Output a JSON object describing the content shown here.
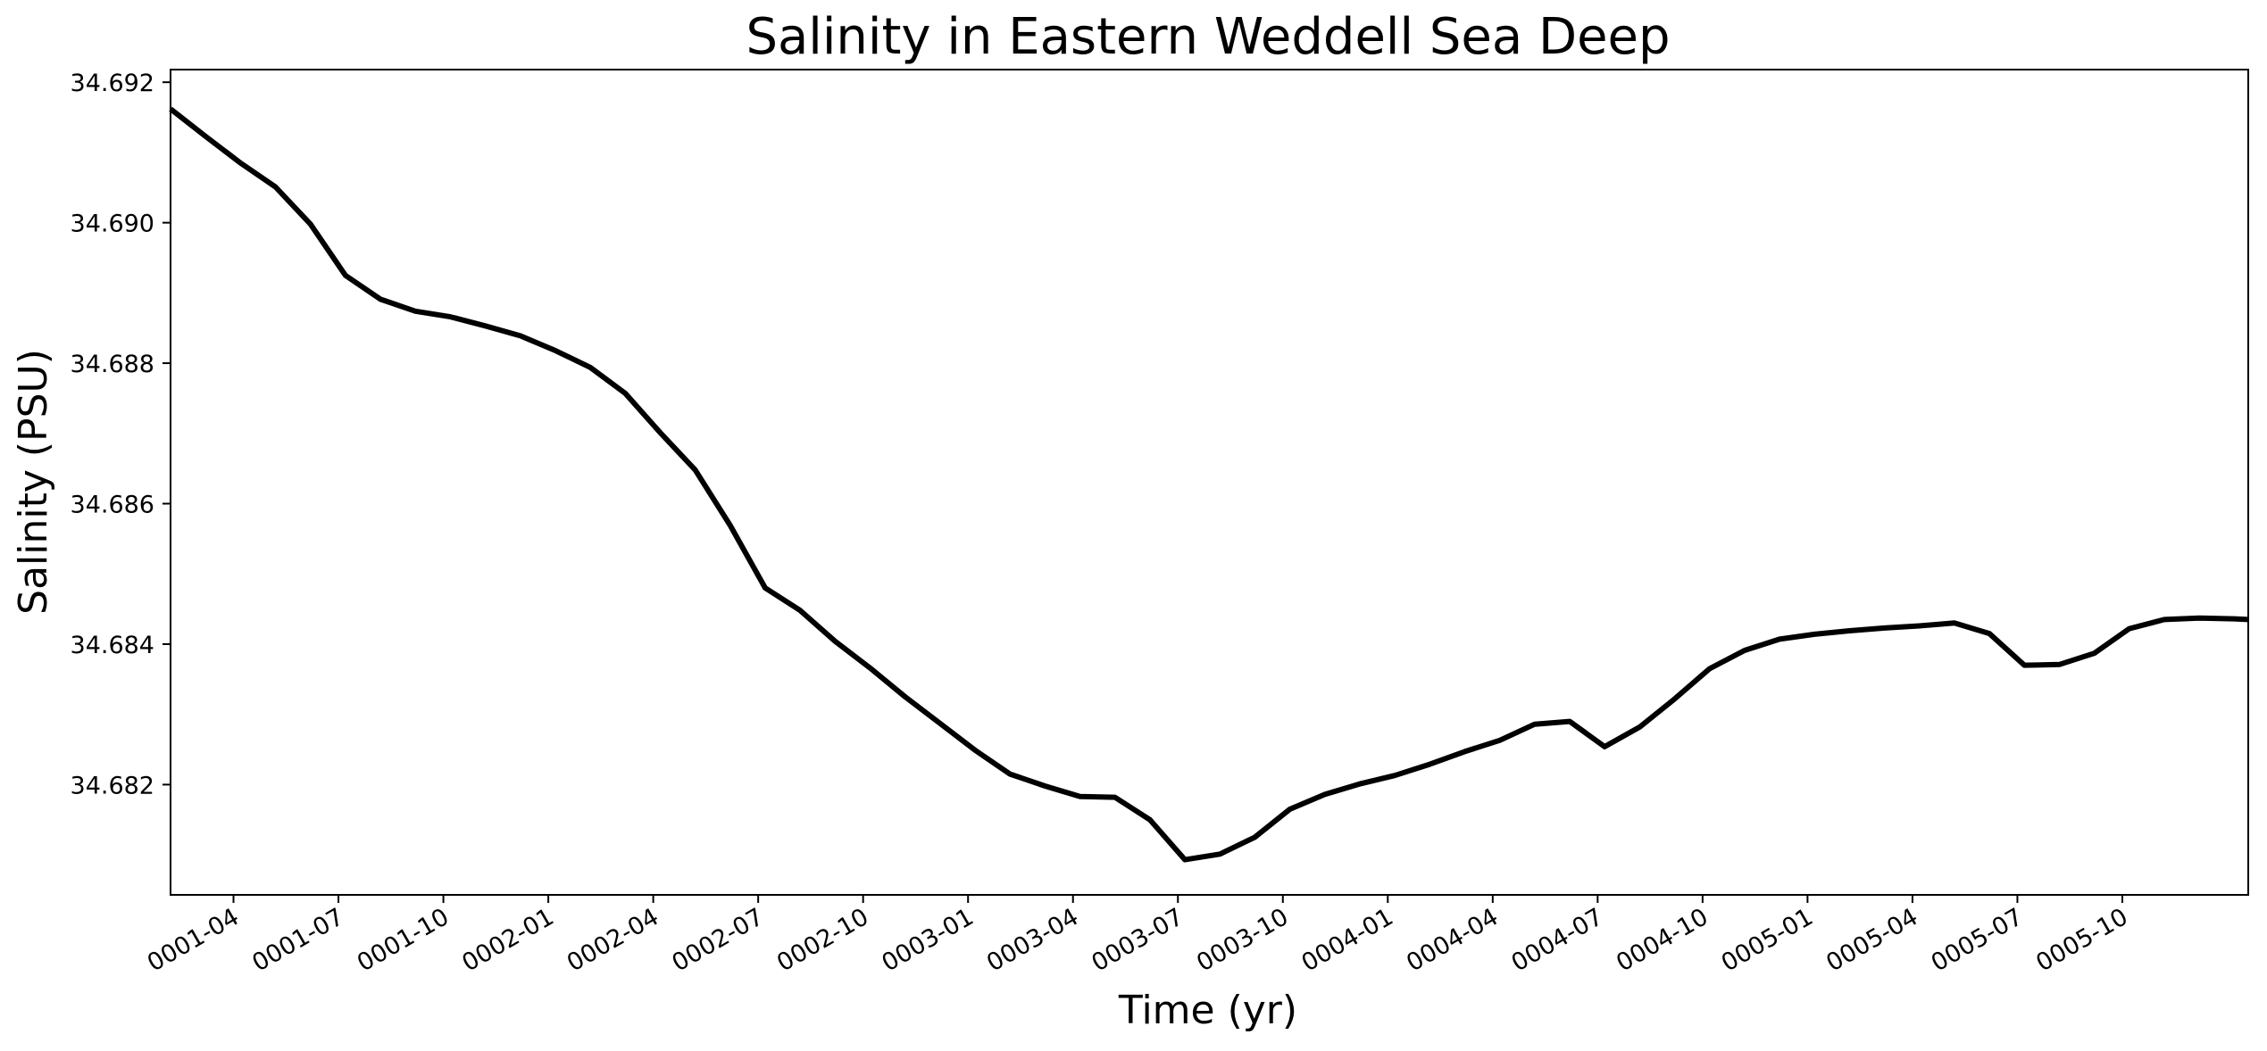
{
  "chart_data": {
    "type": "line",
    "title": "Salinity in Eastern Weddell Sea Deep",
    "xlabel": "Time (yr)",
    "ylabel": "Salinity (PSU)",
    "grid": false,
    "line_color": "#000000",
    "xlim_month_index": [
      1.2,
      60.6
    ],
    "ylim": [
      34.68043,
      34.69218
    ],
    "x_ticks": [
      {
        "label": "0001-04",
        "month_index": 3
      },
      {
        "label": "0001-07",
        "month_index": 6
      },
      {
        "label": "0001-10",
        "month_index": 9
      },
      {
        "label": "0002-01",
        "month_index": 12
      },
      {
        "label": "0002-04",
        "month_index": 15
      },
      {
        "label": "0002-07",
        "month_index": 18
      },
      {
        "label": "0002-10",
        "month_index": 21
      },
      {
        "label": "0003-01",
        "month_index": 24
      },
      {
        "label": "0003-04",
        "month_index": 27
      },
      {
        "label": "0003-07",
        "month_index": 30
      },
      {
        "label": "0003-10",
        "month_index": 33
      },
      {
        "label": "0004-01",
        "month_index": 36
      },
      {
        "label": "0004-04",
        "month_index": 39
      },
      {
        "label": "0004-07",
        "month_index": 42
      },
      {
        "label": "0004-10",
        "month_index": 45
      },
      {
        "label": "0005-01",
        "month_index": 48
      },
      {
        "label": "0005-04",
        "month_index": 51
      },
      {
        "label": "0005-07",
        "month_index": 54
      },
      {
        "label": "0005-10",
        "month_index": 57
      }
    ],
    "y_ticks": [
      "34.682",
      "34.684",
      "34.686",
      "34.688",
      "34.690",
      "34.692"
    ],
    "series": [
      {
        "name": "Salinity",
        "x": [
          1.2,
          2.2,
          3.2,
          4.2,
          5.2,
          6.2,
          7.2,
          8.2,
          9.2,
          10.2,
          11.2,
          12.2,
          13.2,
          14.2,
          15.2,
          16.2,
          17.2,
          18.2,
          19.2,
          20.2,
          21.2,
          22.2,
          23.2,
          24.2,
          25.2,
          26.2,
          27.2,
          28.2,
          29.2,
          30.2,
          31.2,
          32.2,
          33.2,
          34.2,
          35.2,
          36.2,
          37.2,
          38.2,
          39.2,
          40.2,
          41.2,
          42.2,
          43.2,
          44.2,
          45.2,
          46.2,
          47.2,
          48.2,
          49.2,
          50.2,
          51.2,
          52.2,
          53.2,
          54.2,
          55.2,
          56.2,
          57.2,
          58.2,
          59.2,
          60.2,
          60.6
        ],
        "values": [
          34.69162,
          34.69123,
          34.69085,
          34.69051,
          34.68998,
          34.68925,
          34.68891,
          34.68874,
          34.68866,
          34.68853,
          34.68839,
          34.68818,
          34.68794,
          34.68757,
          34.68701,
          34.68648,
          34.68569,
          34.6848,
          34.68448,
          34.68404,
          34.68366,
          34.68325,
          34.68287,
          34.68249,
          34.68215,
          34.68198,
          34.68183,
          34.68182,
          34.6815,
          34.68093,
          34.68101,
          34.68125,
          34.68165,
          34.68186,
          34.68201,
          34.68213,
          34.68229,
          34.68247,
          34.68263,
          34.68286,
          34.6829,
          34.68254,
          34.68282,
          34.68322,
          34.68365,
          34.68391,
          34.68407,
          34.68414,
          34.68419,
          34.68423,
          34.68426,
          34.6843,
          34.68415,
          34.6837,
          34.68371,
          34.68387,
          34.68422,
          34.68435,
          34.68437,
          34.68436,
          34.68435
        ]
      }
    ]
  }
}
